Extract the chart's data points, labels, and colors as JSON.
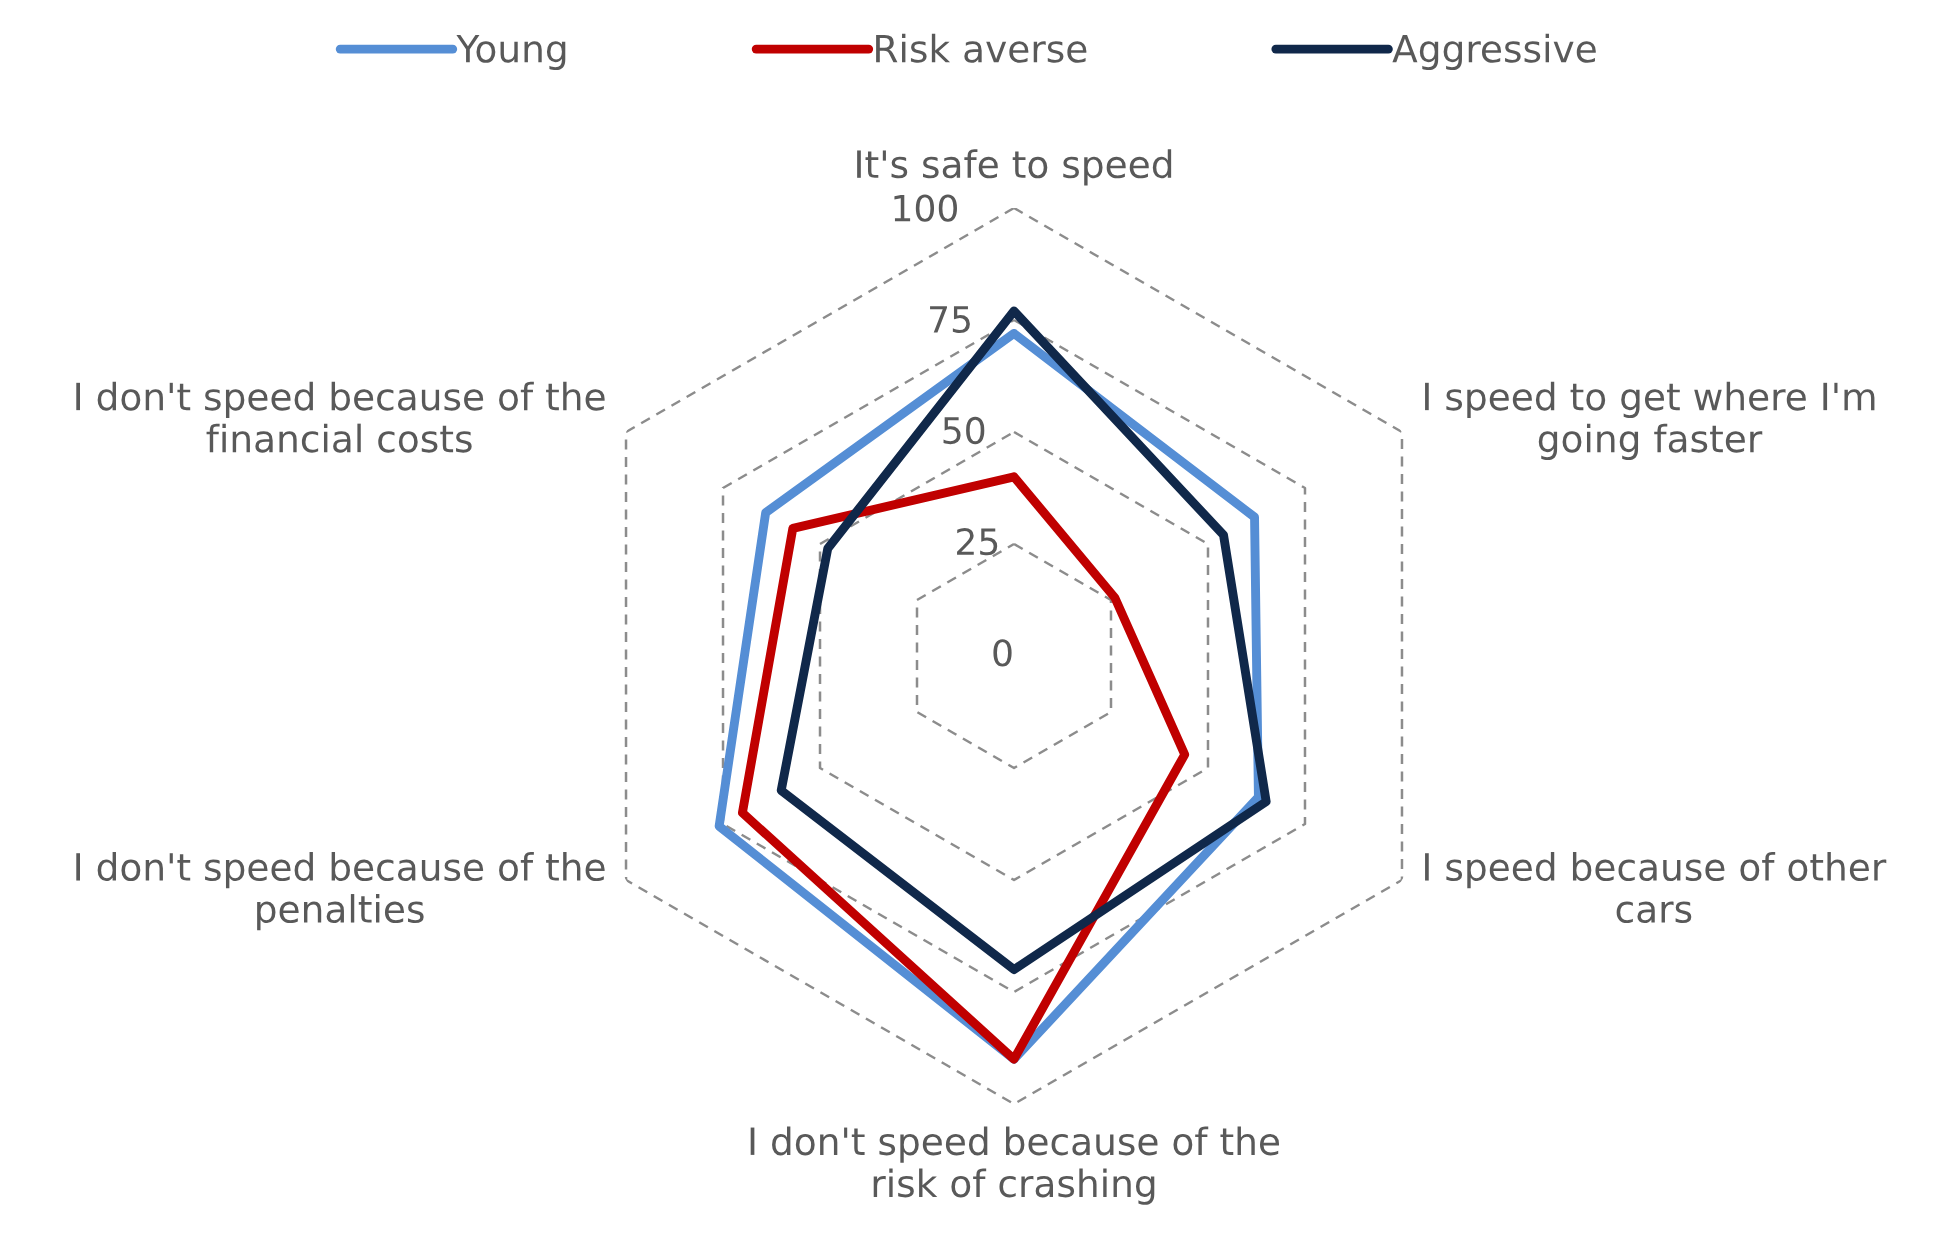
{
  "chart_data": {
    "type": "radar",
    "categories": [
      "It's safe to speed",
      "I speed to get where I'm\ngoing faster",
      "I speed because of other\ncars",
      "I don't speed because of the\nrisk of crashing",
      "I don't speed because of the\npenalties",
      "I don't speed because of the\nfinancial costs"
    ],
    "series": [
      {
        "name": "Young",
        "color": "#558ed5",
        "values": [
          72,
          62,
          63,
          90,
          76,
          64
        ]
      },
      {
        "name": "Risk averse",
        "color": "#c00000",
        "values": [
          40,
          26,
          44,
          90,
          70,
          57
        ]
      },
      {
        "name": "Aggressive",
        "color": "#10284a",
        "values": [
          77,
          54,
          65,
          70,
          60,
          48
        ]
      }
    ],
    "ylim": [
      0,
      100
    ],
    "yticks": [
      0,
      25,
      50,
      75,
      100
    ],
    "grid": true,
    "legend": "top",
    "marker": "none",
    "line_style": "solid"
  }
}
